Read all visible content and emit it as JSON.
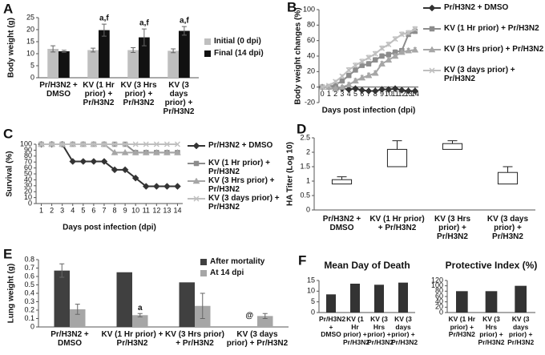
{
  "chart_data": [
    {
      "panel": "A",
      "type": "bar",
      "ylabel": "Body weight (g)",
      "categories": [
        "Pr/H3N2 + DMSO",
        "KV (1 Hr prior) + Pr/H3N2",
        "KV (3 Hrs prior) + Pr/H3N2",
        "KV (3 days prior) + Pr/H3N2"
      ],
      "series": [
        {
          "name": "Initial (0 dpi)",
          "color": "#bfbfbf",
          "values": [
            12,
            11.5,
            11.5,
            11.2
          ],
          "errors": [
            1.3,
            0.8,
            1,
            0.8
          ]
        },
        {
          "name": "Final (14 dpi)",
          "color": "#111111",
          "values": [
            11,
            19.8,
            16.8,
            19.5
          ],
          "errors": [
            0.4,
            2.5,
            3.5,
            1.8
          ]
        }
      ],
      "annotations": [
        {
          "text": "a,f",
          "category": "KV (1 Hr prior) + Pr/H3N2",
          "series": "Final (14 dpi)"
        },
        {
          "text": "a,f",
          "category": "KV (3 Hrs prior) + Pr/H3N2",
          "series": "Final (14 dpi)"
        },
        {
          "text": "a,f",
          "category": "KV (3 days prior) + Pr/H3N2",
          "series": "Final (14 dpi)"
        }
      ],
      "ylim": [
        0,
        25
      ],
      "yticks": [
        0,
        5,
        10,
        15,
        20,
        25
      ],
      "grid": false,
      "legend": "right"
    },
    {
      "panel": "B",
      "type": "line",
      "ylabel": "Body weight changes (%)",
      "xlabel": "Days post infection (dpi)",
      "x": [
        0,
        1,
        2,
        3,
        4,
        5,
        6,
        7,
        8,
        9,
        10,
        11,
        12,
        13,
        14
      ],
      "xlim": [
        -0.5,
        14.5
      ],
      "xticks": [
        0,
        1,
        2,
        3,
        4,
        5,
        6,
        7,
        8,
        9,
        10,
        11,
        12,
        13,
        14
      ],
      "series": [
        {
          "name": "Pr/H3N2 + DMSO",
          "color": "#333333",
          "marker": "diamond",
          "values": [
            0,
            0,
            -2,
            -2,
            -3,
            -2,
            -4,
            -5,
            -5,
            -3,
            -3,
            -2,
            -4,
            -5,
            -5
          ],
          "errors": [
            1,
            1,
            1,
            1,
            1,
            1,
            1,
            1,
            1,
            1,
            1,
            1,
            1,
            1,
            1
          ]
        },
        {
          "name": "KV (1 Hr prior) + Pr/H3N2",
          "color": "#8c8c8c",
          "marker": "square",
          "values": [
            0,
            0,
            3,
            8,
            15,
            22,
            28,
            30,
            35,
            40,
            42,
            45,
            47,
            68,
            72
          ],
          "errors": [
            1,
            1,
            2,
            2,
            3,
            3,
            3,
            3,
            3,
            3,
            3,
            3,
            3,
            3,
            3
          ]
        },
        {
          "name": "KV (3 Hrs prior) + Pr/H3N2",
          "color": "#a6a6a6",
          "marker": "triangle",
          "values": [
            0,
            0,
            -2,
            0,
            3,
            8,
            12,
            15,
            18,
            30,
            35,
            40,
            45,
            47,
            48
          ],
          "errors": [
            1,
            1,
            2,
            2,
            3,
            3,
            3,
            3,
            3,
            3,
            3,
            3,
            3,
            3,
            3
          ]
        },
        {
          "name": "KV (3 days prior) + Pr/H3N2",
          "color": "#bfbfbf",
          "marker": "x",
          "values": [
            0,
            2,
            7,
            14,
            22,
            28,
            33,
            38,
            43,
            50,
            55,
            62,
            68,
            70,
            75
          ],
          "errors": [
            1,
            1,
            2,
            2,
            3,
            3,
            3,
            3,
            3,
            3,
            3,
            3,
            3,
            3,
            3
          ]
        }
      ],
      "ylim": [
        -20,
        100
      ],
      "yticks": [
        -20,
        0,
        20,
        40,
        60,
        80,
        100
      ],
      "grid": false,
      "legend": "right"
    },
    {
      "panel": "C",
      "type": "line",
      "ylabel": "Survival (%)",
      "xlabel": "Days post infection (dpi)",
      "x": [
        1,
        2,
        3,
        4,
        5,
        6,
        7,
        8,
        9,
        10,
        11,
        12,
        13,
        14
      ],
      "xlim": [
        0.5,
        14.5
      ],
      "xticks": [
        1,
        2,
        3,
        4,
        5,
        6,
        7,
        8,
        9,
        10,
        11,
        12,
        13,
        14
      ],
      "series": [
        {
          "name": "Pr/H3N2 + DMSO",
          "color": "#333333",
          "marker": "diamond",
          "values": [
            100,
            100,
            100,
            71,
            71,
            71,
            71,
            57,
            57,
            43,
            29,
            29,
            29,
            29
          ]
        },
        {
          "name": "KV (1 Hr prior) + Pr/H3N2",
          "color": "#8c8c8c",
          "marker": "square",
          "values": [
            100,
            100,
            100,
            100,
            100,
            100,
            100,
            100,
            100,
            86,
            86,
            86,
            86,
            86
          ]
        },
        {
          "name": "KV (3 Hrs prior) + Pr/H3N2",
          "color": "#a6a6a6",
          "marker": "triangle",
          "values": [
            100,
            100,
            100,
            100,
            100,
            100,
            100,
            86,
            86,
            86,
            86,
            86,
            86,
            86
          ]
        },
        {
          "name": "KV (3 days prior) + Pr/H3N2",
          "color": "#bfbfbf",
          "marker": "x",
          "values": [
            100,
            100,
            100,
            100,
            100,
            100,
            100,
            100,
            100,
            100,
            100,
            100,
            100,
            100
          ]
        }
      ],
      "ylim": [
        0,
        100
      ],
      "yticks": [
        0,
        10,
        20,
        30,
        40,
        50,
        60,
        70,
        80,
        90,
        100
      ],
      "grid": false,
      "legend": "right"
    },
    {
      "panel": "D",
      "type": "box",
      "ylabel": "HA Titer (Log 10)",
      "categories": [
        "Pr/H3N2 + DMSO",
        "KV (1 Hr prior) + Pr/H3N2",
        "KV (3 Hrs prior) + Pr/H3N2",
        "KV (3 days prior) + Pr/H3N2"
      ],
      "boxes": [
        {
          "q1": 0.9,
          "q3": 1.05,
          "max": 1.15
        },
        {
          "q1": 1.5,
          "q3": 2.1,
          "max": 2.4
        },
        {
          "q1": 2.1,
          "q3": 2.3,
          "max": 2.4
        },
        {
          "q1": 0.9,
          "q3": 1.3,
          "max": 1.5
        }
      ],
      "color": "#ffffff",
      "ylim": [
        0,
        2.5
      ],
      "yticks": [
        0,
        0.5,
        1,
        1.5,
        2,
        2.5
      ],
      "grid": false
    },
    {
      "panel": "E",
      "type": "bar",
      "ylabel": "Lung weight (g)",
      "categories": [
        "Pr/H3N2 + DMSO",
        "KV (1 Hr prior) + Pr/H3N2",
        "KV (3 Hrs prior) + Pr/H3N2",
        "KV (3 days prior) + Pr/H3N2"
      ],
      "series": [
        {
          "name": "After mortality",
          "color": "#404040",
          "values": [
            0.67,
            0.65,
            0.53,
            null
          ],
          "errors": [
            0.08,
            null,
            null,
            null
          ]
        },
        {
          "name": "At 14 dpi",
          "color": "#a6a6a6",
          "values": [
            0.21,
            0.14,
            0.25,
            0.13
          ],
          "errors": [
            0.06,
            0.02,
            0.15,
            0.03
          ]
        }
      ],
      "annotations": [
        {
          "text": "a",
          "category": "KV (1 Hr prior) + Pr/H3N2",
          "series": "At 14 dpi"
        },
        {
          "text": "@",
          "category": "KV (3 days prior) + Pr/H3N2",
          "series": "After mortality"
        }
      ],
      "ylim": [
        0,
        0.8
      ],
      "yticks": [
        0,
        0.1,
        0.2,
        0.3,
        0.4,
        0.5,
        0.6,
        0.7,
        0.8
      ],
      "grid": false,
      "legend": "top right"
    },
    {
      "panel": "F",
      "type": "bar",
      "title": "Mean Day of Death",
      "categories": [
        "Pr/H3N2 + DMSO",
        "KV (1 Hr prior) + Pr/H3N2",
        "KV (3 Hrs prior) + Pr/H3N2",
        "KV (3 days prior) + Pr/H3N2"
      ],
      "values": [
        8.5,
        13.5,
        13,
        14
      ],
      "color": "#333333",
      "ylim": [
        0,
        15
      ],
      "yticks": [
        0,
        5,
        10,
        15
      ],
      "grid": false
    },
    {
      "type": "bar",
      "title": "Protective Index (%)",
      "categories": [
        "KV (1 Hr prior) + Pr/H3N2",
        "KV (3 Hrs prior) + Pr/H3N2",
        "KV (3 days prior) + Pr/H3N2"
      ],
      "values": [
        80,
        80,
        100
      ],
      "color": "#333333",
      "ylim": [
        0,
        120
      ],
      "yticks": [
        0,
        20,
        40,
        60,
        80,
        100,
        120
      ],
      "grid": false
    }
  ]
}
